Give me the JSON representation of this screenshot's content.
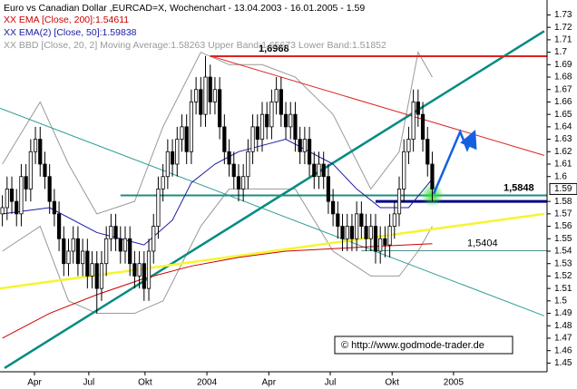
{
  "chart_data": {
    "type": "candlestick",
    "title": "Euro vs Canadian Dollar ,EURCAD=X, Wochenchart - 13.04.2003 - 16.01.2005 - 1.59",
    "xlim": [
      -0.5,
      115.3
    ],
    "ylim": [
      1.443,
      1.742
    ],
    "xticks": [
      {
        "value": 6.8,
        "label": "Apr"
      },
      {
        "value": 18.3,
        "label": "Jul"
      },
      {
        "value": 30.2,
        "label": "Okt"
      },
      {
        "value": 43.3,
        "label": "2004"
      },
      {
        "value": 56.4,
        "label": "Apr"
      },
      {
        "value": 69.4,
        "label": "Jul"
      },
      {
        "value": 82.5,
        "label": "Okt"
      },
      {
        "value": 95.5,
        "label": "2005"
      }
    ],
    "yticks": [
      1.45,
      1.46,
      1.47,
      1.48,
      1.49,
      1.5,
      1.51,
      1.52,
      1.53,
      1.54,
      1.55,
      1.56,
      1.57,
      1.58,
      1.6,
      1.61,
      1.62,
      1.63,
      1.64,
      1.65,
      1.66,
      1.67,
      1.68,
      1.69,
      1.7,
      1.71,
      1.72,
      1.73
    ],
    "last_price": 1.59,
    "up_color": "#ffffff",
    "down_color": "#000000",
    "open": [
      1.57,
      1.575,
      1.59,
      1.58,
      1.57,
      1.6,
      1.59,
      1.62,
      1.63,
      1.61,
      1.6,
      1.58,
      1.57,
      1.55,
      1.53,
      1.54,
      1.55,
      1.53,
      1.54,
      1.52,
      1.53,
      1.51,
      1.53,
      1.55,
      1.56,
      1.55,
      1.54,
      1.55,
      1.53,
      1.52,
      1.53,
      1.51,
      1.54,
      1.56,
      1.59,
      1.6,
      1.62,
      1.61,
      1.63,
      1.64,
      1.62,
      1.66,
      1.67,
      1.65,
      1.68,
      1.66,
      1.67,
      1.64,
      1.62,
      1.61,
      1.6,
      1.59,
      1.6,
      1.62,
      1.64,
      1.63,
      1.65,
      1.64,
      1.66,
      1.67,
      1.65,
      1.64,
      1.65,
      1.63,
      1.62,
      1.63,
      1.61,
      1.6,
      1.61,
      1.6,
      1.58,
      1.57,
      1.56,
      1.55,
      1.56,
      1.55,
      1.57,
      1.56,
      1.55,
      1.56,
      1.54,
      1.55,
      1.545,
      1.56,
      1.57,
      1.59,
      1.62,
      1.63,
      1.66,
      1.65,
      1.63,
      1.61
    ],
    "close": [
      1.575,
      1.59,
      1.58,
      1.57,
      1.6,
      1.59,
      1.62,
      1.63,
      1.61,
      1.6,
      1.58,
      1.57,
      1.55,
      1.53,
      1.54,
      1.55,
      1.53,
      1.54,
      1.52,
      1.53,
      1.51,
      1.53,
      1.55,
      1.56,
      1.55,
      1.54,
      1.55,
      1.53,
      1.52,
      1.53,
      1.51,
      1.54,
      1.56,
      1.59,
      1.6,
      1.62,
      1.61,
      1.63,
      1.64,
      1.62,
      1.66,
      1.67,
      1.65,
      1.68,
      1.66,
      1.67,
      1.64,
      1.62,
      1.61,
      1.6,
      1.59,
      1.6,
      1.62,
      1.64,
      1.63,
      1.65,
      1.64,
      1.66,
      1.67,
      1.65,
      1.64,
      1.65,
      1.63,
      1.62,
      1.63,
      1.61,
      1.6,
      1.61,
      1.6,
      1.58,
      1.57,
      1.56,
      1.55,
      1.56,
      1.55,
      1.57,
      1.56,
      1.55,
      1.56,
      1.54,
      1.55,
      1.545,
      1.56,
      1.57,
      1.59,
      1.62,
      1.63,
      1.66,
      1.65,
      1.63,
      1.61,
      1.59
    ],
    "high": [
      1.585,
      1.6,
      1.6,
      1.59,
      1.61,
      1.61,
      1.63,
      1.64,
      1.64,
      1.62,
      1.61,
      1.59,
      1.58,
      1.56,
      1.55,
      1.56,
      1.56,
      1.55,
      1.55,
      1.54,
      1.54,
      1.54,
      1.56,
      1.57,
      1.57,
      1.56,
      1.56,
      1.56,
      1.54,
      1.54,
      1.54,
      1.55,
      1.57,
      1.6,
      1.61,
      1.63,
      1.63,
      1.64,
      1.65,
      1.65,
      1.67,
      1.68,
      1.68,
      1.697,
      1.69,
      1.68,
      1.68,
      1.65,
      1.63,
      1.62,
      1.61,
      1.61,
      1.63,
      1.65,
      1.65,
      1.66,
      1.66,
      1.67,
      1.68,
      1.68,
      1.66,
      1.66,
      1.66,
      1.64,
      1.64,
      1.64,
      1.62,
      1.62,
      1.62,
      1.61,
      1.59,
      1.58,
      1.57,
      1.57,
      1.57,
      1.58,
      1.58,
      1.57,
      1.57,
      1.57,
      1.56,
      1.56,
      1.57,
      1.58,
      1.6,
      1.63,
      1.64,
      1.67,
      1.67,
      1.66,
      1.64,
      1.62
    ],
    "low": [
      1.56,
      1.565,
      1.57,
      1.56,
      1.56,
      1.58,
      1.58,
      1.61,
      1.6,
      1.59,
      1.57,
      1.56,
      1.54,
      1.52,
      1.52,
      1.53,
      1.52,
      1.52,
      1.51,
      1.51,
      1.49,
      1.5,
      1.52,
      1.54,
      1.54,
      1.53,
      1.53,
      1.52,
      1.51,
      1.51,
      1.5,
      1.5,
      1.53,
      1.55,
      1.58,
      1.59,
      1.6,
      1.6,
      1.62,
      1.61,
      1.61,
      1.65,
      1.64,
      1.64,
      1.65,
      1.65,
      1.63,
      1.61,
      1.6,
      1.59,
      1.58,
      1.58,
      1.59,
      1.61,
      1.62,
      1.62,
      1.63,
      1.63,
      1.65,
      1.64,
      1.63,
      1.63,
      1.62,
      1.61,
      1.61,
      1.6,
      1.59,
      1.59,
      1.59,
      1.57,
      1.56,
      1.55,
      1.54,
      1.54,
      1.54,
      1.54,
      1.55,
      1.54,
      1.54,
      1.53,
      1.53,
      1.535,
      1.535,
      1.55,
      1.56,
      1.58,
      1.61,
      1.62,
      1.64,
      1.62,
      1.6,
      1.58
    ],
    "series": [
      {
        "name": "XX EMA [Close, 200]:1.54611",
        "color": "#cc0000",
        "x": [
          0,
          10,
          20,
          30,
          40,
          50,
          60,
          70,
          80,
          91
        ],
        "values": [
          1.47,
          1.49,
          1.505,
          1.518,
          1.528,
          1.535,
          1.54,
          1.542,
          1.544,
          1.546
        ]
      },
      {
        "name": "XX EMA(2) [Close, 50]:1.59838",
        "color": "#1a1aa6",
        "x": [
          0,
          10,
          20,
          30,
          36,
          40,
          45,
          50,
          55,
          60,
          65,
          70,
          75,
          80,
          86,
          91
        ],
        "values": [
          1.57,
          1.575,
          1.555,
          1.545,
          1.565,
          1.595,
          1.61,
          1.62,
          1.625,
          1.63,
          1.62,
          1.61,
          1.59,
          1.575,
          1.575,
          1.598
        ]
      }
    ],
    "bands": {
      "name": "XX BBD [Close, 20, 2] Moving Average:1.58263 Upper Band:1.65673 Lower Band:1.51852",
      "color": "#999999",
      "x": [
        0,
        8,
        14,
        20,
        28,
        34,
        42,
        48,
        55,
        62,
        70,
        78,
        84,
        88,
        91
      ],
      "upper": [
        1.61,
        1.66,
        1.61,
        1.57,
        1.58,
        1.64,
        1.7,
        1.69,
        1.69,
        1.68,
        1.65,
        1.59,
        1.62,
        1.7,
        1.68
      ],
      "lower": [
        1.54,
        1.56,
        1.5,
        1.49,
        1.49,
        1.5,
        1.56,
        1.59,
        1.59,
        1.59,
        1.54,
        1.52,
        1.52,
        1.54,
        1.56
      ]
    },
    "trendlines": [
      {
        "color": "#008b80",
        "width": 2.5,
        "x": [
          0.46,
          114.7
        ],
        "values": [
          1.446,
          1.717
        ]
      },
      {
        "color": "#2a9d96",
        "width": 1,
        "x": [
          -0.5,
          114.7
        ],
        "values": [
          1.655,
          1.488
        ]
      },
      {
        "color": "#f5f531",
        "width": 2.5,
        "x": [
          -0.5,
          114.7
        ],
        "values": [
          1.51,
          1.57
        ]
      },
      {
        "color": "#dd2222",
        "width": 1,
        "x": [
          44,
          114.7
        ],
        "values": [
          1.697,
          1.617
        ]
      }
    ],
    "levels": [
      {
        "value": 1.6968,
        "label": "1,6968",
        "color": "#dd2222",
        "width": 2,
        "from": 44
      },
      {
        "value": 1.5848,
        "label": "1,5848",
        "color": "#1e8c80",
        "width": 2,
        "from": 25
      },
      {
        "value": 1.5404,
        "label": "1,5404",
        "color": "#4f8f88",
        "width": 1,
        "from": 76
      },
      {
        "value": 1.58,
        "color": "#000080",
        "width": 3,
        "from": 79
      }
    ],
    "arrow": {
      "color": "#1560e0",
      "x": [
        91.3,
        96.9,
        98.4,
        99.4
      ],
      "values": [
        1.586,
        1.636,
        1.622,
        1.631
      ]
    },
    "highlight": {
      "color": "#33dd33",
      "x": 91,
      "value": 1.585
    },
    "copyright": "© http://www.godmode-trader.de"
  }
}
